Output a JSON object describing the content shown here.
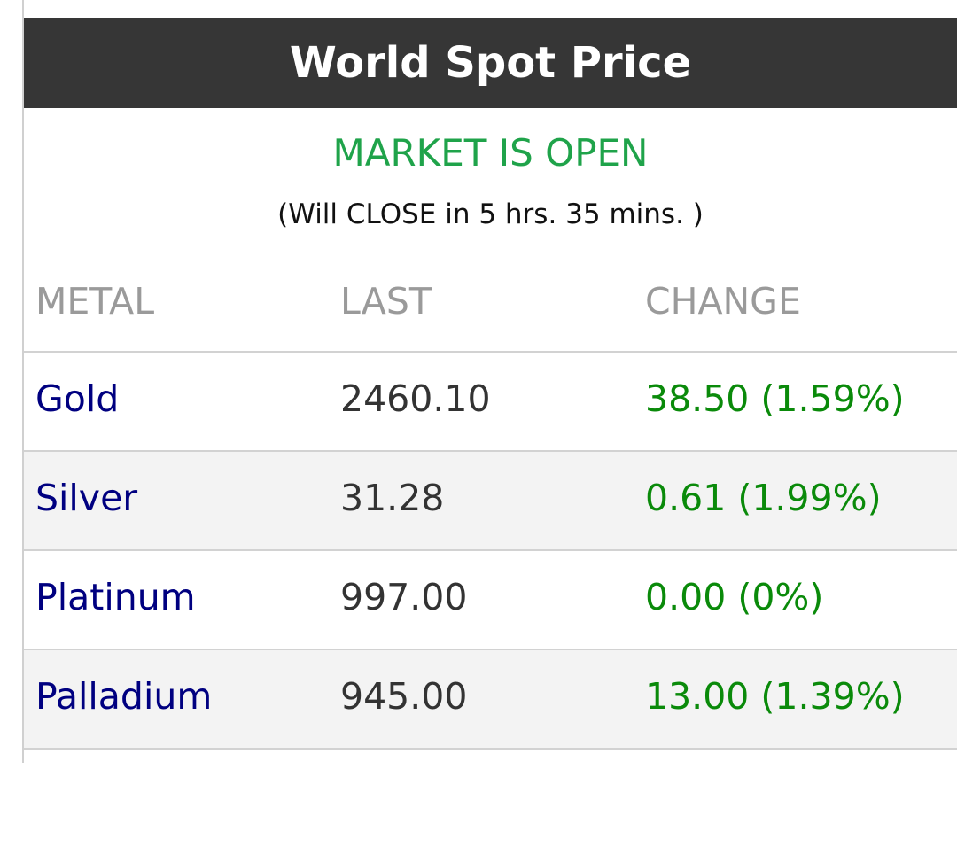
{
  "header": {
    "title": "World Spot Price"
  },
  "status": {
    "text": "MARKET IS OPEN",
    "note": "(Will CLOSE in 5 hrs. 35 mins. )"
  },
  "table": {
    "columns": [
      "METAL",
      "LAST",
      "CHANGE"
    ],
    "rows": [
      [
        "Gold",
        "2460.10",
        "38.50 (1.59%)"
      ],
      [
        "Silver",
        "31.28",
        "0.61 (1.99%)"
      ],
      [
        "Platinum",
        "997.00",
        "0.00 (0%)"
      ],
      [
        "Palladium",
        "945.00",
        "13.00 (1.39%)"
      ]
    ]
  }
}
